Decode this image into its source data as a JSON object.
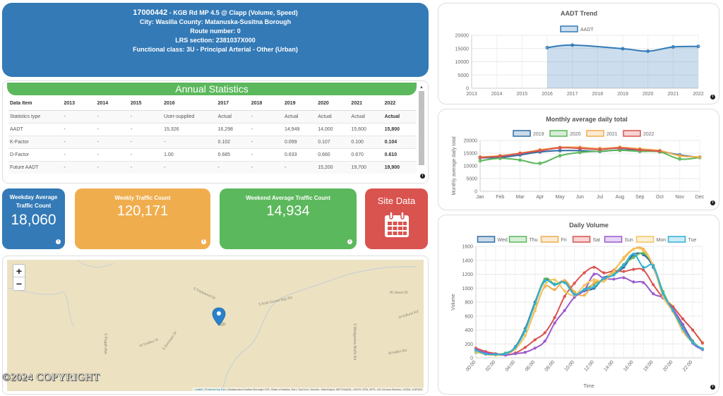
{
  "header": {
    "site_id": "17000442",
    "site_desc": " - KGB Rd MP 4.5 @ Clapp (Volume, Speed)",
    "city_line": "City: Wasilla County: Matanuska-Susitna Borough",
    "route_line": "Route number: 0",
    "lrs_line": "LRS section: 2381037X000",
    "class_line": "Functional class: 3U - Principal Arterial - Other (Urban)"
  },
  "annual_statistics": {
    "title": "Annual Statistics",
    "columns": [
      "Data Item",
      "2013",
      "2014",
      "2015",
      "2016",
      "2017",
      "2018",
      "2019",
      "2020",
      "2021",
      "2022"
    ],
    "rows": [
      [
        "Statistics type",
        "-",
        "-",
        "-",
        "User-supplied",
        "Actual",
        "-",
        "Actual",
        "Actual",
        "Actual",
        "Actual"
      ],
      [
        "AADT",
        "-",
        "-",
        "-",
        "15,326",
        "16,298",
        "-",
        "14,949",
        "14,000",
        "15,600",
        "15,800"
      ],
      [
        "K-Factor",
        "-",
        "-",
        "-",
        "-",
        "0.102",
        "-",
        "0.099",
        "0.107",
        "0.100",
        "0.104"
      ],
      [
        "D-Factor",
        "-",
        "-",
        "-",
        "1.00",
        "0.685",
        "-",
        "0.633",
        "0.660",
        "0.670",
        "0.610"
      ],
      [
        "Future AADT",
        "-",
        "-",
        "-",
        "-",
        "-",
        "-",
        "-",
        "15,200",
        "19,700",
        "19,900"
      ]
    ]
  },
  "tiles": {
    "weekday": {
      "label_1": "Weekday Average",
      "label_2": "Traffic Count",
      "value": "18,060"
    },
    "weekly": {
      "label": "Weekly Traffic Count",
      "value": "120,171"
    },
    "weekend": {
      "label": "Weekend Average Traffic Count",
      "value": "14,934"
    },
    "site": {
      "label": "Site Data",
      "icon": "calendar-icon"
    }
  },
  "map": {
    "zoom_in": "+",
    "zoom_out": "−",
    "road_labels": [
      "S Tradewind Dr",
      "S Knik Goose Bay Rd",
      "W Jones Dr",
      "W Edlund Rd",
      "S Wedgeview Bluffs Rd",
      "W Adkin Rd",
      "W Dudley St",
      "S Donovan Dr",
      "S Pisgah Ave"
    ],
    "attribution_leaflet": "Leaflet",
    "attribution_esri": "Powered by Esri",
    "attribution_rest": " | Matanuska-Susitna Borough GIS, State of Alaska, Esri, TomTom, Garmin, SafeGraph, METI/NASA, USGS, EPA, NPS, US Census Bureau, USDA, USFWS",
    "marker": "map-marker"
  },
  "copyright": "©2024 COPYRIGHT",
  "chart_data": [
    {
      "type": "area",
      "title": "AADT Trend",
      "legend": [
        "AADT"
      ],
      "legend_placement": "top",
      "x": [
        "2013",
        "2014",
        "2015",
        "2016",
        "2017",
        "2018",
        "2019",
        "2020",
        "2021",
        "2022"
      ],
      "series": [
        {
          "name": "AADT",
          "color": "#337ab7",
          "values": [
            null,
            null,
            null,
            15326,
            16298,
            null,
            14949,
            14000,
            15600,
            15800
          ]
        }
      ],
      "ylim": [
        0,
        20000
      ],
      "yticks": [
        0,
        5000,
        10000,
        15000,
        20000
      ],
      "grid": true
    },
    {
      "type": "line",
      "title": "Monthly average daily total",
      "ylabel": "Monthly average daily total",
      "legend_placement": "top",
      "x": [
        "Jan",
        "Feb",
        "Mar",
        "Apr",
        "May",
        "Jun",
        "Jul",
        "Aug",
        "Sep",
        "Oct",
        "Nov",
        "Dec"
      ],
      "series": [
        {
          "name": "2019",
          "color": "#2e6da4",
          "values": [
            13200,
            13300,
            14300,
            15500,
            16000,
            16000,
            15700,
            16300,
            16000,
            15700,
            14300,
            13300
          ]
        },
        {
          "name": "2020",
          "color": "#5cb85c",
          "values": [
            12000,
            13000,
            12300,
            11000,
            14000,
            15300,
            15800,
            16100,
            15700,
            15500,
            12700,
            13300
          ]
        },
        {
          "name": "2021",
          "color": "#f0ad4e",
          "values": [
            13500,
            14000,
            15000,
            16300,
            17300,
            17300,
            16800,
            17300,
            16700,
            16000,
            14000,
            13500
          ]
        },
        {
          "name": "2022",
          "color": "#d9534f",
          "values": [
            13300,
            13800,
            14900,
            16000,
            17100,
            16900,
            16500,
            17000,
            16300,
            15800,
            null,
            null
          ]
        }
      ],
      "ylim": [
        0,
        20000
      ],
      "yticks": [
        0,
        5000,
        10000,
        15000,
        20000
      ],
      "grid": true
    },
    {
      "type": "line",
      "title": "Daily Volume",
      "xlabel": "Time",
      "ylabel": "Volume",
      "legend_placement": "top",
      "x": [
        "00:00",
        "01:00",
        "02:00",
        "03:00",
        "04:00",
        "05:00",
        "06:00",
        "07:00",
        "08:00",
        "09:00",
        "10:00",
        "11:00",
        "12:00",
        "13:00",
        "14:00",
        "15:00",
        "16:00",
        "17:00",
        "18:00",
        "19:00",
        "20:00",
        "21:00",
        "22:00",
        "23:00"
      ],
      "xtick_labels": [
        "00:00",
        "02:00",
        "04:00",
        "06:00",
        "08:00",
        "10:00",
        "12:00",
        "14:00",
        "16:00",
        "18:00",
        "20:00",
        "22:00"
      ],
      "series": [
        {
          "name": "Wed",
          "color": "#2e6da4",
          "values": [
            120,
            55,
            60,
            55,
            160,
            420,
            800,
            1120,
            1050,
            1100,
            920,
            960,
            1000,
            1150,
            1200,
            1300,
            1480,
            1480,
            1300,
            900,
            700,
            480,
            240,
            120
          ]
        },
        {
          "name": "Thu",
          "color": "#5cb85c",
          "values": [
            80,
            60,
            50,
            70,
            150,
            400,
            780,
            1130,
            1060,
            1090,
            920,
            980,
            1060,
            1130,
            1200,
            1340,
            1440,
            1500,
            1330,
            950,
            680,
            450,
            230,
            130
          ]
        },
        {
          "name": "Fri",
          "color": "#f0ad4e",
          "values": [
            100,
            60,
            40,
            50,
            130,
            320,
            680,
            1020,
            980,
            1110,
            950,
            900,
            1080,
            1120,
            1260,
            1420,
            1560,
            1560,
            1320,
            900,
            740,
            560,
            400,
            220
          ]
        },
        {
          "name": "Sat",
          "color": "#d9534f",
          "values": [
            140,
            90,
            60,
            40,
            70,
            150,
            260,
            360,
            580,
            880,
            1070,
            1220,
            1300,
            1220,
            1250,
            1240,
            1270,
            1260,
            1050,
            860,
            730,
            560,
            400,
            210
          ]
        },
        {
          "name": "Sun",
          "color": "#9b59d0",
          "values": [
            120,
            70,
            50,
            40,
            60,
            80,
            140,
            240,
            500,
            680,
            870,
            970,
            1200,
            1140,
            1130,
            1150,
            1090,
            1080,
            920,
            860,
            700,
            480,
            210,
            120
          ]
        },
        {
          "name": "Mon",
          "color": "#f5c45e",
          "values": [
            90,
            50,
            40,
            60,
            140,
            320,
            700,
            1040,
            1120,
            960,
            900,
            1040,
            1120,
            1100,
            1240,
            1440,
            1560,
            1540,
            1320,
            880,
            660,
            380,
            220,
            130
          ]
        },
        {
          "name": "Tue",
          "color": "#31b0d5",
          "values": [
            110,
            55,
            50,
            60,
            150,
            390,
            780,
            1100,
            1050,
            1080,
            910,
            980,
            1020,
            1140,
            1190,
            1330,
            1490,
            1300,
            1320,
            920,
            680,
            420,
            220,
            130
          ]
        }
      ],
      "ylim": [
        0,
        1600
      ],
      "yticks": [
        0,
        200,
        400,
        600,
        800,
        1000,
        1200,
        1400,
        1600
      ],
      "grid": true
    }
  ]
}
